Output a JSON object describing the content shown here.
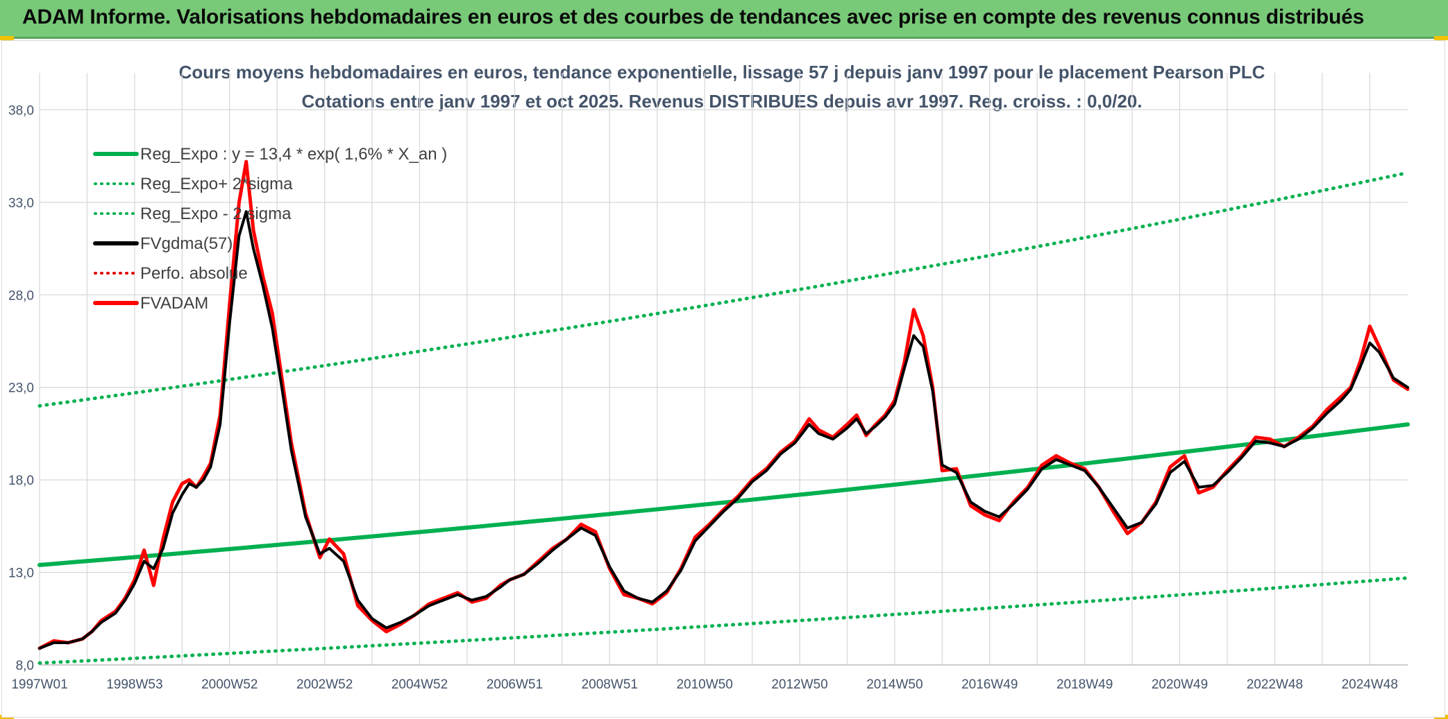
{
  "header": {
    "title": "ADAM Informe. Valorisations hebdomadaires en euros et des courbes de tendances avec prise en compte des revenus connus distribués"
  },
  "colors": {
    "banner": "#78c978",
    "accent_yellow": "#f2c200",
    "regression": "#00b050",
    "fvgdma": "#000000",
    "fvadam": "#ff0000",
    "perfo": "#e00000",
    "grid": "#d9d9d9",
    "text": "#44546a"
  },
  "chart_data": {
    "type": "line",
    "title_line1": "Cours moyens hebdomadaires en euros, tendance exponentielle, lissage 57 j depuis janv 1997 pour le placement Pearson PLC",
    "title_line2": "Cotations entre janv 1997 et oct 2025. Revenus DISTRIBUES depuis avr 1997. Reg. croiss. : 0,0/20.",
    "xlabel": "",
    "ylabel": "",
    "x_range": [
      1997.0,
      2025.8
    ],
    "ylim": [
      8.0,
      40.0
    ],
    "y_ticks": [
      "8,0",
      "13,0",
      "18,0",
      "23,0",
      "28,0",
      "33,0",
      "38,0"
    ],
    "y_tick_values": [
      8,
      13,
      18,
      23,
      28,
      33,
      38
    ],
    "x_ticks": [
      "1997W01",
      "1998W53",
      "2000W52",
      "2002W52",
      "2004W52",
      "2006W51",
      "2008W51",
      "2010W50",
      "2012W50",
      "2014W50",
      "2016W49",
      "2018W49",
      "2020W49",
      "2022W48",
      "2024W48"
    ],
    "x_tick_years": [
      1997,
      1999,
      2001,
      2003,
      2005,
      2007,
      2009,
      2011,
      2013,
      2015,
      2017,
      2019,
      2021,
      2023,
      2025
    ],
    "legend": [
      {
        "label": "Reg_Expo : y = 13,4 * exp( 1,6% *  X_an )",
        "style": "solid",
        "color": "#00b050"
      },
      {
        "label": "Reg_Expo+ 2*sigma",
        "style": "dotted",
        "color": "#00b050"
      },
      {
        "label": "Reg_Expo - 2 sigma",
        "style": "dotted",
        "color": "#00b050"
      },
      {
        "label": "FVgdma(57)",
        "style": "solid",
        "color": "#000000"
      },
      {
        "label": "Perfo. absolue",
        "style": "dotted",
        "color": "#e00000"
      },
      {
        "label": "FVADAM",
        "style": "solid",
        "color": "#ff0000"
      }
    ],
    "series": [
      {
        "name": "Reg_Expo",
        "x": [
          1997.0,
          2025.8
        ],
        "values": [
          13.4,
          21.0
        ]
      },
      {
        "name": "Reg_Expo+ 2*sigma",
        "x": [
          1997.0,
          2025.8
        ],
        "values": [
          22.0,
          34.6
        ]
      },
      {
        "name": "Reg_Expo - 2 sigma",
        "x": [
          1997.0,
          2025.8
        ],
        "values": [
          8.1,
          12.7
        ]
      },
      {
        "name": "FVADAM",
        "x": [
          1997.0,
          1997.3,
          1997.6,
          1997.9,
          1998.1,
          1998.3,
          1998.6,
          1998.8,
          1999.0,
          1999.2,
          1999.4,
          1999.6,
          1999.8,
          2000.0,
          2000.15,
          2000.3,
          2000.45,
          2000.6,
          2000.8,
          2001.0,
          2001.2,
          2001.35,
          2001.5,
          2001.7,
          2001.9,
          2002.1,
          2002.3,
          2002.6,
          2002.9,
          2003.1,
          2003.4,
          2003.7,
          2004.0,
          2004.3,
          2004.6,
          2004.9,
          2005.2,
          2005.5,
          2005.8,
          2006.1,
          2006.4,
          2006.7,
          2006.9,
          2007.2,
          2007.5,
          2007.8,
          2008.1,
          2008.4,
          2008.7,
          2009.0,
          2009.3,
          2009.6,
          2009.9,
          2010.2,
          2010.5,
          2010.8,
          2011.1,
          2011.4,
          2011.7,
          2012.0,
          2012.3,
          2012.6,
          2012.9,
          2013.2,
          2013.4,
          2013.7,
          2014.0,
          2014.2,
          2014.4,
          2014.6,
          2014.8,
          2015.0,
          2015.2,
          2015.4,
          2015.6,
          2015.8,
          2016.0,
          2016.3,
          2016.6,
          2016.9,
          2017.2,
          2017.5,
          2017.8,
          2018.1,
          2018.4,
          2018.7,
          2019.0,
          2019.3,
          2019.6,
          2019.9,
          2020.2,
          2020.5,
          2020.8,
          2021.1,
          2021.4,
          2021.7,
          2022.0,
          2022.3,
          2022.6,
          2022.9,
          2023.2,
          2023.5,
          2023.8,
          2024.1,
          2024.4,
          2024.6,
          2024.8,
          2025.0,
          2025.2,
          2025.5,
          2025.8
        ],
        "values": [
          8.9,
          9.3,
          9.2,
          9.4,
          9.8,
          10.4,
          10.9,
          11.6,
          12.6,
          14.2,
          12.3,
          14.8,
          16.8,
          17.8,
          18.0,
          17.6,
          18.2,
          18.9,
          21.5,
          27.5,
          33.0,
          35.2,
          31.5,
          29.0,
          27.0,
          23.5,
          20.0,
          16.2,
          13.8,
          14.8,
          14.0,
          11.2,
          10.4,
          9.8,
          10.2,
          10.7,
          11.3,
          11.6,
          11.9,
          11.4,
          11.6,
          12.3,
          12.6,
          12.9,
          13.6,
          14.3,
          14.8,
          15.6,
          15.2,
          13.2,
          11.8,
          11.6,
          11.3,
          11.9,
          13.2,
          14.9,
          15.6,
          16.4,
          17.1,
          18.0,
          18.6,
          19.5,
          20.1,
          21.3,
          20.7,
          20.3,
          21.0,
          21.5,
          20.4,
          21.0,
          21.5,
          22.3,
          24.3,
          27.2,
          25.8,
          23.0,
          18.5,
          18.6,
          16.6,
          16.1,
          15.8,
          16.8,
          17.6,
          18.8,
          19.3,
          18.9,
          18.6,
          17.6,
          16.3,
          15.1,
          15.7,
          16.8,
          18.7,
          19.3,
          17.3,
          17.6,
          18.5,
          19.3,
          20.3,
          20.2,
          19.8,
          20.3,
          20.9,
          21.8,
          22.5,
          23.0,
          24.4,
          26.3,
          25.2,
          23.4,
          22.9
        ]
      },
      {
        "name": "FVgdma(57)",
        "x": [
          1997.0,
          1997.3,
          1997.6,
          1997.9,
          1998.1,
          1998.3,
          1998.6,
          1998.8,
          1999.0,
          1999.2,
          1999.4,
          1999.6,
          1999.8,
          2000.0,
          2000.15,
          2000.3,
          2000.45,
          2000.6,
          2000.8,
          2001.0,
          2001.2,
          2001.35,
          2001.5,
          2001.7,
          2001.9,
          2002.1,
          2002.3,
          2002.6,
          2002.9,
          2003.1,
          2003.4,
          2003.7,
          2004.0,
          2004.3,
          2004.6,
          2004.9,
          2005.2,
          2005.5,
          2005.8,
          2006.1,
          2006.4,
          2006.7,
          2006.9,
          2007.2,
          2007.5,
          2007.8,
          2008.1,
          2008.4,
          2008.7,
          2009.0,
          2009.3,
          2009.6,
          2009.9,
          2010.2,
          2010.5,
          2010.8,
          2011.1,
          2011.4,
          2011.7,
          2012.0,
          2012.3,
          2012.6,
          2012.9,
          2013.2,
          2013.4,
          2013.7,
          2014.0,
          2014.2,
          2014.4,
          2014.6,
          2014.8,
          2015.0,
          2015.2,
          2015.4,
          2015.6,
          2015.8,
          2016.0,
          2016.3,
          2016.6,
          2016.9,
          2017.2,
          2017.5,
          2017.8,
          2018.1,
          2018.4,
          2018.7,
          2019.0,
          2019.3,
          2019.6,
          2019.9,
          2020.2,
          2020.5,
          2020.8,
          2021.1,
          2021.4,
          2021.7,
          2022.0,
          2022.3,
          2022.6,
          2022.9,
          2023.2,
          2023.5,
          2023.8,
          2024.1,
          2024.4,
          2024.6,
          2024.8,
          2025.0,
          2025.2,
          2025.5,
          2025.8
        ],
        "values": [
          8.9,
          9.2,
          9.2,
          9.4,
          9.8,
          10.3,
          10.8,
          11.5,
          12.4,
          13.6,
          13.2,
          14.3,
          16.2,
          17.2,
          17.8,
          17.6,
          18.0,
          18.7,
          21.0,
          26.5,
          31.2,
          32.5,
          30.5,
          28.5,
          26.2,
          23.0,
          19.6,
          16.0,
          14.0,
          14.3,
          13.6,
          11.5,
          10.5,
          10.0,
          10.3,
          10.7,
          11.2,
          11.5,
          11.8,
          11.5,
          11.7,
          12.2,
          12.6,
          12.9,
          13.5,
          14.2,
          14.8,
          15.4,
          15.0,
          13.3,
          12.0,
          11.6,
          11.4,
          12.0,
          13.1,
          14.7,
          15.5,
          16.3,
          17.0,
          17.9,
          18.5,
          19.4,
          20.0,
          21.0,
          20.5,
          20.2,
          20.8,
          21.3,
          20.5,
          20.9,
          21.4,
          22.1,
          24.0,
          25.8,
          25.2,
          22.8,
          18.8,
          18.4,
          16.8,
          16.3,
          16.0,
          16.7,
          17.5,
          18.6,
          19.1,
          18.8,
          18.5,
          17.6,
          16.5,
          15.4,
          15.7,
          16.7,
          18.4,
          19.0,
          17.6,
          17.7,
          18.4,
          19.2,
          20.1,
          20.0,
          19.8,
          20.2,
          20.8,
          21.6,
          22.3,
          22.9,
          24.1,
          25.4,
          24.9,
          23.5,
          23.0
        ]
      }
    ]
  }
}
